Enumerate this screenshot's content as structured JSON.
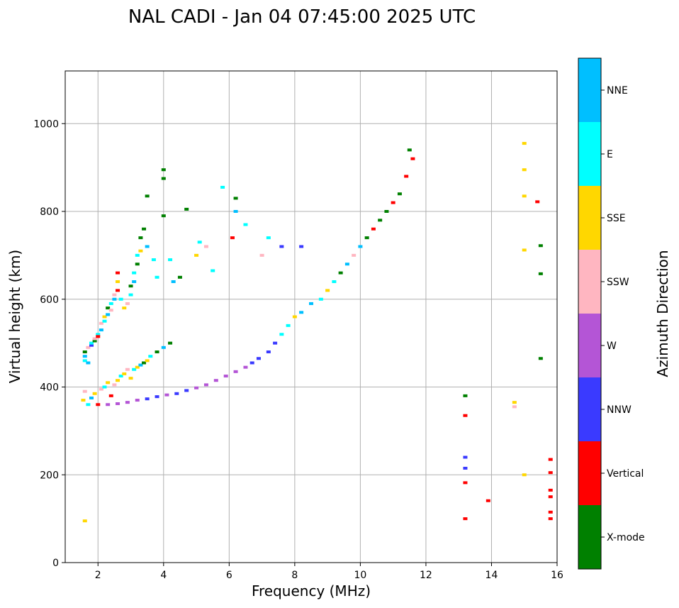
{
  "chart_data": {
    "type": "scatter",
    "title": "NAL CADI - Jan 04 07:45:00 2025 UTC",
    "xlabel": "Frequency (MHz)",
    "ylabel": "Virtual height (km)",
    "xlim": [
      1,
      16
    ],
    "ylim": [
      0,
      1120
    ],
    "xticks": [
      2,
      4,
      6,
      8,
      10,
      12,
      14,
      16
    ],
    "yticks": [
      0,
      200,
      400,
      600,
      800,
      1000
    ],
    "grid": true,
    "colorbar": {
      "label": "Azimuth Direction",
      "position": "right",
      "categories": [
        {
          "name": "X-mode",
          "color": "#008000"
        },
        {
          "name": "Vertical",
          "color": "#ff0000"
        },
        {
          "name": "NNW",
          "color": "#3a3aff"
        },
        {
          "name": "W",
          "color": "#b455d6"
        },
        {
          "name": "SSW",
          "color": "#ffb6c1"
        },
        {
          "name": "SSE",
          "color": "#ffd700"
        },
        {
          "name": "E",
          "color": "#00ffff"
        },
        {
          "name": "NNE",
          "color": "#00bfff"
        }
      ]
    },
    "points": [
      [
        1.6,
        470,
        "NNE"
      ],
      [
        1.6,
        480,
        "X-mode"
      ],
      [
        1.6,
        460,
        "E"
      ],
      [
        1.7,
        490,
        "SSW"
      ],
      [
        1.7,
        455,
        "NNE"
      ],
      [
        1.8,
        495,
        "NNW"
      ],
      [
        1.8,
        500,
        "E"
      ],
      [
        1.9,
        505,
        "X-mode"
      ],
      [
        1.9,
        510,
        "SSW"
      ],
      [
        2.0,
        520,
        "E"
      ],
      [
        2.0,
        515,
        "Vertical"
      ],
      [
        2.1,
        530,
        "NNE"
      ],
      [
        2.1,
        545,
        "SSW"
      ],
      [
        2.2,
        550,
        "E"
      ],
      [
        2.2,
        560,
        "SSE"
      ],
      [
        2.3,
        565,
        "NNE"
      ],
      [
        2.3,
        580,
        "X-mode"
      ],
      [
        2.4,
        590,
        "E"
      ],
      [
        2.4,
        575,
        "SSW"
      ],
      [
        2.5,
        600,
        "NNE"
      ],
      [
        2.5,
        610,
        "SSW"
      ],
      [
        2.6,
        620,
        "Vertical"
      ],
      [
        2.6,
        640,
        "SSE"
      ],
      [
        2.6,
        660,
        "Vertical"
      ],
      [
        2.7,
        600,
        "E"
      ],
      [
        2.8,
        580,
        "SSE"
      ],
      [
        2.9,
        590,
        "SSW"
      ],
      [
        3.0,
        610,
        "E"
      ],
      [
        3.0,
        630,
        "X-mode"
      ],
      [
        3.1,
        640,
        "NNE"
      ],
      [
        3.1,
        660,
        "E"
      ],
      [
        3.2,
        680,
        "X-mode"
      ],
      [
        3.2,
        700,
        "E"
      ],
      [
        3.3,
        710,
        "SSE"
      ],
      [
        3.3,
        740,
        "X-mode"
      ],
      [
        3.4,
        760,
        "X-mode"
      ],
      [
        3.5,
        720,
        "NNE"
      ],
      [
        3.5,
        835,
        "X-mode"
      ],
      [
        3.7,
        690,
        "E"
      ],
      [
        3.8,
        650,
        "E"
      ],
      [
        4.0,
        790,
        "X-mode"
      ],
      [
        4.0,
        895,
        "X-mode"
      ],
      [
        4.0,
        875,
        "X-mode"
      ],
      [
        4.2,
        690,
        "E"
      ],
      [
        4.3,
        640,
        "NNE"
      ],
      [
        4.5,
        650,
        "X-mode"
      ],
      [
        4.7,
        805,
        "X-mode"
      ],
      [
        5.0,
        700,
        "SSE"
      ],
      [
        5.1,
        730,
        "E"
      ],
      [
        5.3,
        720,
        "SSW"
      ],
      [
        5.5,
        665,
        "E"
      ],
      [
        5.8,
        855,
        "E"
      ],
      [
        6.1,
        740,
        "Vertical"
      ],
      [
        6.2,
        830,
        "X-mode"
      ],
      [
        6.2,
        800,
        "NNE"
      ],
      [
        6.5,
        770,
        "E"
      ],
      [
        7.0,
        700,
        "SSW"
      ],
      [
        7.2,
        740,
        "E"
      ],
      [
        7.6,
        720,
        "NNW"
      ],
      [
        8.2,
        720,
        "NNW"
      ],
      [
        1.55,
        370,
        "SSE"
      ],
      [
        1.6,
        390,
        "SSW"
      ],
      [
        1.7,
        360,
        "E"
      ],
      [
        1.8,
        375,
        "NNE"
      ],
      [
        1.9,
        385,
        "SSE"
      ],
      [
        2.0,
        360,
        "Vertical"
      ],
      [
        2.1,
        395,
        "SSW"
      ],
      [
        2.2,
        400,
        "E"
      ],
      [
        2.3,
        410,
        "SSE"
      ],
      [
        2.4,
        380,
        "Vertical"
      ],
      [
        2.5,
        405,
        "SSW"
      ],
      [
        2.6,
        415,
        "SSE"
      ],
      [
        2.7,
        425,
        "E"
      ],
      [
        2.8,
        430,
        "SSE"
      ],
      [
        2.9,
        440,
        "SSW"
      ],
      [
        3.0,
        420,
        "SSE"
      ],
      [
        3.1,
        440,
        "E"
      ],
      [
        3.2,
        445,
        "SSE"
      ],
      [
        3.3,
        450,
        "NNE"
      ],
      [
        3.4,
        455,
        "X-mode"
      ],
      [
        3.5,
        460,
        "SSE"
      ],
      [
        3.6,
        470,
        "E"
      ],
      [
        3.8,
        480,
        "X-mode"
      ],
      [
        4.0,
        490,
        "NNE"
      ],
      [
        4.2,
        500,
        "X-mode"
      ],
      [
        2.3,
        360,
        "W"
      ],
      [
        2.6,
        362,
        "W"
      ],
      [
        2.9,
        365,
        "W"
      ],
      [
        3.2,
        370,
        "W"
      ],
      [
        3.5,
        373,
        "NNW"
      ],
      [
        3.8,
        378,
        "NNW"
      ],
      [
        4.1,
        382,
        "W"
      ],
      [
        4.4,
        385,
        "NNW"
      ],
      [
        4.7,
        392,
        "NNW"
      ],
      [
        5.0,
        398,
        "W"
      ],
      [
        5.3,
        405,
        "W"
      ],
      [
        5.6,
        415,
        "W"
      ],
      [
        5.9,
        425,
        "W"
      ],
      [
        6.2,
        435,
        "W"
      ],
      [
        6.5,
        445,
        "W"
      ],
      [
        6.7,
        455,
        "NNW"
      ],
      [
        6.9,
        465,
        "NNW"
      ],
      [
        7.2,
        480,
        "NNW"
      ],
      [
        7.4,
        500,
        "NNW"
      ],
      [
        7.6,
        520,
        "E"
      ],
      [
        7.8,
        540,
        "E"
      ],
      [
        8.0,
        560,
        "SSE"
      ],
      [
        8.2,
        570,
        "NNE"
      ],
      [
        8.5,
        590,
        "NNE"
      ],
      [
        8.8,
        600,
        "E"
      ],
      [
        9.0,
        620,
        "SSE"
      ],
      [
        9.2,
        640,
        "E"
      ],
      [
        9.4,
        660,
        "X-mode"
      ],
      [
        9.6,
        680,
        "NNE"
      ],
      [
        9.8,
        700,
        "SSW"
      ],
      [
        10.0,
        720,
        "NNE"
      ],
      [
        10.2,
        740,
        "X-mode"
      ],
      [
        10.4,
        760,
        "Vertical"
      ],
      [
        10.6,
        780,
        "X-mode"
      ],
      [
        10.8,
        800,
        "X-mode"
      ],
      [
        11.0,
        820,
        "Vertical"
      ],
      [
        11.2,
        840,
        "X-mode"
      ],
      [
        11.4,
        880,
        "Vertical"
      ],
      [
        11.5,
        940,
        "X-mode"
      ],
      [
        11.6,
        920,
        "Vertical"
      ],
      [
        13.2,
        380,
        "X-mode"
      ],
      [
        13.2,
        335,
        "Vertical"
      ],
      [
        13.2,
        240,
        "NNW"
      ],
      [
        13.2,
        215,
        "NNW"
      ],
      [
        13.2,
        182,
        "Vertical"
      ],
      [
        13.2,
        100,
        "Vertical"
      ],
      [
        13.9,
        141,
        "Vertical"
      ],
      [
        14.7,
        365,
        "SSE"
      ],
      [
        14.7,
        355,
        "SSW"
      ],
      [
        15.0,
        200,
        "SSE"
      ],
      [
        15.0,
        955,
        "SSE"
      ],
      [
        15.0,
        895,
        "SSE"
      ],
      [
        15.0,
        835,
        "SSE"
      ],
      [
        15.0,
        712,
        "SSE"
      ],
      [
        15.4,
        822,
        "Vertical"
      ],
      [
        15.5,
        722,
        "X-mode"
      ],
      [
        15.5,
        658,
        "X-mode"
      ],
      [
        15.5,
        465,
        "X-mode"
      ],
      [
        15.8,
        235,
        "Vertical"
      ],
      [
        15.8,
        205,
        "Vertical"
      ],
      [
        15.8,
        165,
        "Vertical"
      ],
      [
        15.8,
        150,
        "Vertical"
      ],
      [
        15.8,
        115,
        "Vertical"
      ],
      [
        15.8,
        100,
        "Vertical"
      ],
      [
        1.6,
        95,
        "SSE"
      ]
    ]
  }
}
